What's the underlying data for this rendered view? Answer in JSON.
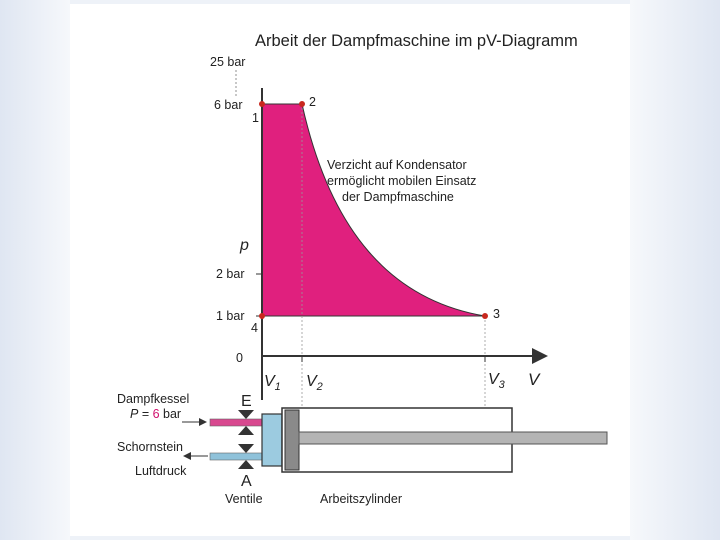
{
  "title": "Arbeit der Dampfmaschine im pV-Diagramm",
  "axes": {
    "p_label": "p",
    "v_label": "V",
    "origin_label": "0",
    "pressure_ticks": [
      "25 bar",
      "6 bar",
      "2 bar",
      "1 bar"
    ],
    "volume_ticks": [
      {
        "main": "V",
        "sub": "1"
      },
      {
        "main": "V",
        "sub": "2"
      },
      {
        "main": "V",
        "sub": "3"
      }
    ]
  },
  "points": [
    "1",
    "2",
    "3",
    "4"
  ],
  "annotation": [
    "Verzicht auf  Kondensator",
    "ermöglicht mobilen Einsatz",
    "der Dampfmaschine"
  ],
  "machine": {
    "boiler_label": "Dampfkessel",
    "pressure_symbol": "P",
    "pressure_equals": " = ",
    "pressure_value": "6",
    "pressure_unit": " bar",
    "chimney_label": "Schornstein",
    "air_label": "Luftdruck",
    "inlet_letter": "E",
    "outlet_letter": "A",
    "valves_label": "Ventile",
    "cylinder_label": "Arbeitszylinder"
  },
  "colors": {
    "work_area": "#e0207e",
    "inlet_pipe": "#d8488f",
    "outlet_pipe": "#8fc2da",
    "points": "#c8281e",
    "pressure_value": "#d0106e"
  }
}
